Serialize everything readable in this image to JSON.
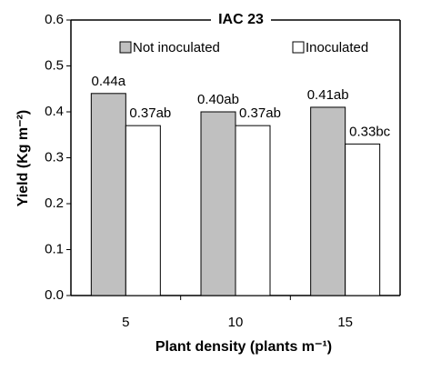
{
  "chart_data": {
    "type": "bar",
    "title": "IAC 23",
    "xlabel": "Plant density (plants m⁻¹)",
    "ylabel": "Yield (Kg m⁻²)",
    "categories": [
      "5",
      "10",
      "15"
    ],
    "series": [
      {
        "name": "Not inoculated",
        "color": "#c0c0c0",
        "values": [
          0.44,
          0.4,
          0.41
        ],
        "value_labels": [
          "0.44a",
          "0.40ab",
          "0.41ab"
        ]
      },
      {
        "name": "Inoculated",
        "color": "#ffffff",
        "values": [
          0.37,
          0.37,
          0.33
        ],
        "value_labels": [
          "0.37ab",
          "0.37ab",
          "0.33bc"
        ]
      }
    ],
    "ylim": [
      0,
      0.6
    ],
    "yticks": [
      {
        "value": 0,
        "label": "0.0"
      },
      0.1,
      0.2,
      0.3,
      0.4,
      0.5,
      0.6
    ],
    "legend": "top",
    "grid": false
  }
}
